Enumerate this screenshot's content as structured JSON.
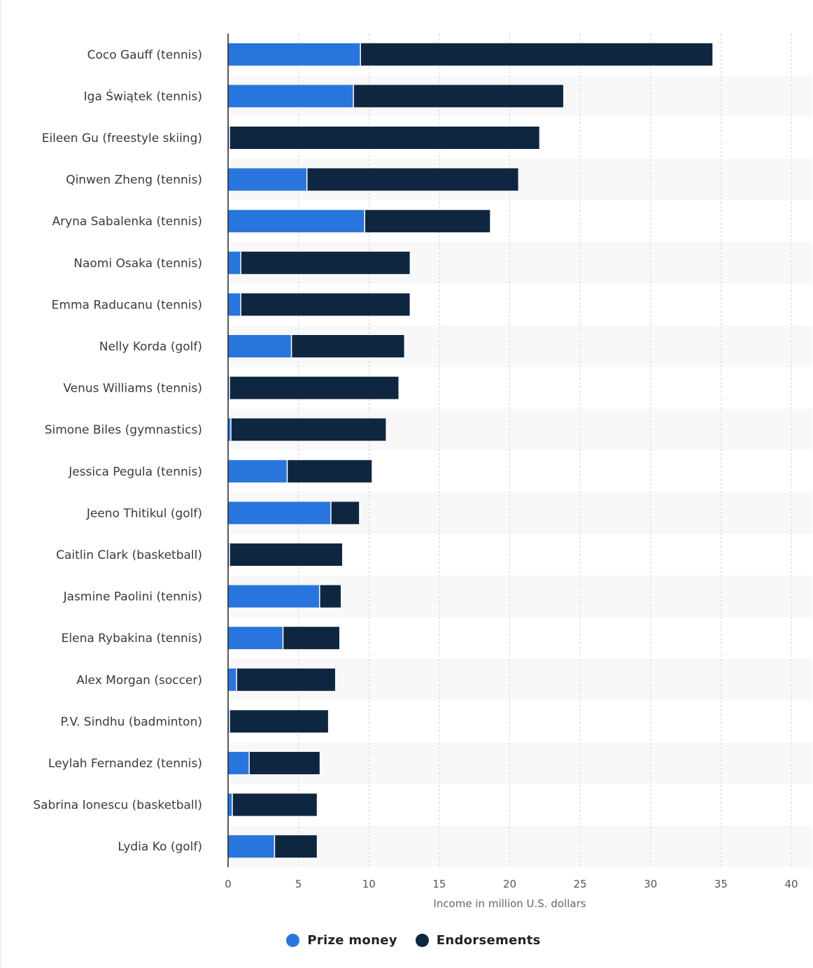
{
  "chart_data": {
    "type": "bar",
    "orientation": "horizontal",
    "stacked": true,
    "categories": [
      "Coco Gauff (tennis)",
      "Iga Świątek (tennis)",
      "Eileen Gu (freestyle skiing)",
      "Qinwen Zheng (tennis)",
      "Aryna Sabalenka (tennis)",
      "Naomi Osaka (tennis)",
      "Emma Raducanu (tennis)",
      "Nelly Korda (golf)",
      "Venus Williams (tennis)",
      "Simone Biles (gymnastics)",
      "Jessica Pegula (tennis)",
      "Jeeno Thitikul (golf)",
      "Caitlin Clark (basketball)",
      "Jasmine Paolini (tennis)",
      "Elena Rybakina (tennis)",
      "Alex Morgan (soccer)",
      "P.V. Sindhu (badminton)",
      "Leylah Fernandez (tennis)",
      "Sabrina Ionescu (basketball)",
      "Lydia Ko (golf)"
    ],
    "series": [
      {
        "name": "Prize money",
        "color": "#2876dd",
        "values": [
          9.4,
          8.9,
          0.1,
          5.6,
          9.7,
          0.9,
          0.9,
          4.5,
          0.1,
          0.2,
          4.2,
          7.3,
          0.1,
          6.5,
          3.9,
          0.6,
          0.1,
          1.5,
          0.3,
          3.3
        ]
      },
      {
        "name": "Endorsements",
        "color": "#0f2640",
        "values": [
          25.0,
          14.9,
          22.0,
          15.0,
          8.9,
          12.0,
          12.0,
          8.0,
          12.0,
          11.0,
          6.0,
          2.0,
          8.0,
          1.5,
          4.0,
          7.0,
          7.0,
          5.0,
          6.0,
          3.0
        ]
      }
    ],
    "xlabel": "Income in million U.S. dollars",
    "xlim": [
      0,
      40
    ],
    "xticks": [
      "0",
      "5",
      "10",
      "15",
      "20",
      "25",
      "30",
      "35",
      "40"
    ],
    "grid": true,
    "legend_position": "bottom-center"
  },
  "legend": {
    "items": [
      {
        "label": "Prize money",
        "color": "#2876dd"
      },
      {
        "label": "Endorsements",
        "color": "#0f2640"
      }
    ]
  }
}
